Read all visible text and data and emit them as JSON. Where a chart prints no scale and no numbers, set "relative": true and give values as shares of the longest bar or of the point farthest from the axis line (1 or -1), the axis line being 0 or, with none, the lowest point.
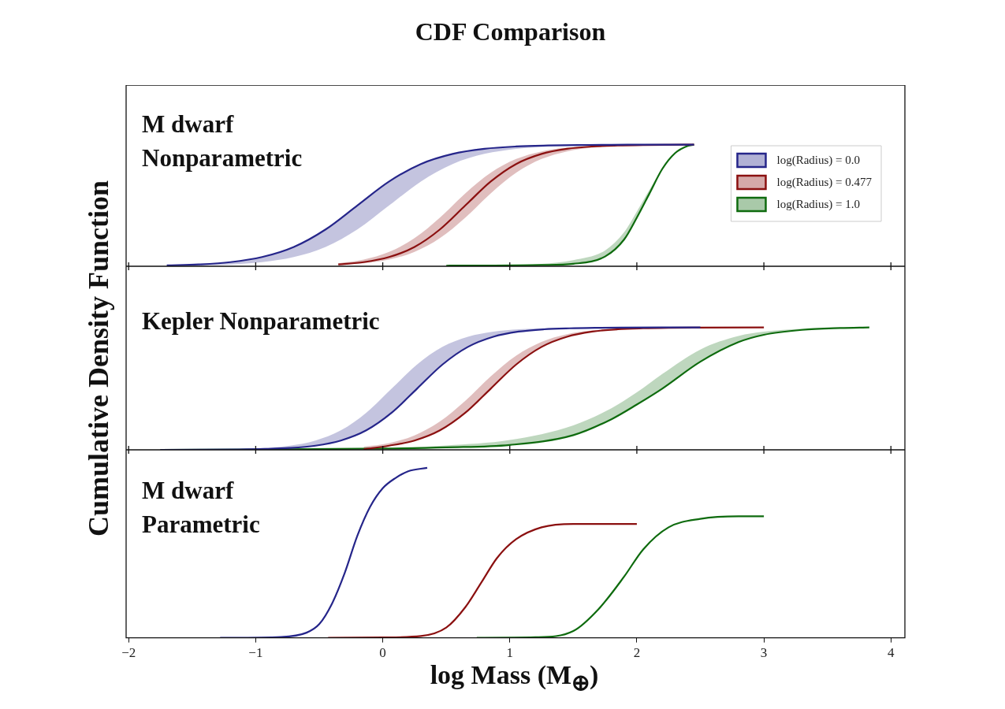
{
  "chart_data": [
    {
      "type": "line",
      "title": "CDF Comparison",
      "annotations": [
        "M dwarf\nNonparametric"
      ],
      "relative": true,
      "xlim": [
        -2.02,
        4.11
      ],
      "xticks": [
        -2,
        -1,
        0,
        1,
        2,
        3,
        4
      ],
      "tick_labels": false,
      "legend": "right",
      "series": [
        {
          "name": "log(Radius) = 0.0",
          "color": "#25258a",
          "x": [
            -1.7,
            -1.45,
            -1.2,
            -0.95,
            -0.7,
            -0.45,
            -0.2,
            0.05,
            0.3,
            0.55,
            0.8,
            1.05,
            1.3,
            1.55,
            1.8,
            2.1,
            2.45
          ],
          "values": [
            0.007,
            0.015,
            0.034,
            0.076,
            0.159,
            0.303,
            0.5,
            0.697,
            0.841,
            0.924,
            0.966,
            0.985,
            0.993,
            0.997,
            0.999,
            1,
            1
          ],
          "upper": [
            0.007,
            0.015,
            0.034,
            0.076,
            0.159,
            0.303,
            0.5,
            0.697,
            0.841,
            0.924,
            0.966,
            0.985,
            0.993,
            0.997,
            0.999,
            1,
            1
          ],
          "lower": [
            0.003,
            0.007,
            0.015,
            0.034,
            0.076,
            0.159,
            0.303,
            0.5,
            0.697,
            0.841,
            0.924,
            0.966,
            0.985,
            0.993,
            0.997,
            1,
            1
          ]
        },
        {
          "name": "log(Radius) = 0.477",
          "color": "#8b1010",
          "x": [
            -0.35,
            -0.15,
            0.05,
            0.25,
            0.45,
            0.65,
            0.85,
            1.05,
            1.25,
            1.45,
            1.65,
            1.85,
            2.05,
            2.25,
            2.45
          ],
          "values": [
            0.015,
            0.034,
            0.076,
            0.159,
            0.303,
            0.5,
            0.697,
            0.841,
            0.924,
            0.966,
            0.985,
            0.993,
            0.997,
            0.999,
            1
          ],
          "upper": [
            0.025,
            0.055,
            0.118,
            0.231,
            0.4,
            0.6,
            0.769,
            0.882,
            0.945,
            0.975,
            0.989,
            0.995,
            0.998,
            1,
            1
          ],
          "lower": [
            0.011,
            0.025,
            0.055,
            0.118,
            0.231,
            0.4,
            0.6,
            0.769,
            0.882,
            0.945,
            0.975,
            0.989,
            0.995,
            0.998,
            1
          ]
        },
        {
          "name": "log(Radius) = 1.0",
          "color": "#0e6b0e",
          "x": [
            0.5,
            0.75,
            1.25,
            1.5,
            1.75,
            1.9,
            2.0,
            2.1,
            2.2,
            2.3,
            2.4,
            2.45
          ],
          "values": [
            0.005,
            0.006,
            0.01,
            0.02,
            0.08,
            0.22,
            0.4,
            0.6,
            0.8,
            0.93,
            0.99,
            1
          ],
          "upper": [
            0.005,
            0.008,
            0.02,
            0.05,
            0.13,
            0.28,
            0.45,
            0.63,
            0.8,
            0.93,
            0.99,
            1
          ],
          "lower": [
            0.005,
            0.006,
            0.01,
            0.02,
            0.08,
            0.22,
            0.4,
            0.6,
            0.8,
            0.93,
            0.99,
            1
          ]
        }
      ]
    },
    {
      "type": "line",
      "ylabel": "Cumulative Density Function",
      "annotations": [
        "Kepler Nonparametric"
      ],
      "relative": true,
      "xlim": [
        -2.02,
        4.11
      ],
      "xticks": [
        -2,
        -1,
        0,
        1,
        2,
        3,
        4
      ],
      "tick_labels": false,
      "series": [
        {
          "color": "#25258a",
          "x": [
            -1.75,
            -1.13,
            -0.93,
            -0.73,
            -0.53,
            -0.33,
            -0.13,
            0.07,
            0.27,
            0.47,
            0.67,
            0.87,
            1.07,
            1.27,
            1.47,
            1.67,
            1.87,
            2.5
          ],
          "values": [
            0,
            0.003,
            0.007,
            0.015,
            0.034,
            0.076,
            0.159,
            0.303,
            0.5,
            0.697,
            0.841,
            0.924,
            0.966,
            0.985,
            0.993,
            0.997,
            0.999,
            1
          ],
          "upper": [
            0,
            0.007,
            0.015,
            0.034,
            0.076,
            0.159,
            0.303,
            0.5,
            0.697,
            0.841,
            0.924,
            0.966,
            0.985,
            0.993,
            0.997,
            0.999,
            1,
            1
          ],
          "lower": [
            0,
            0.003,
            0.007,
            0.015,
            0.034,
            0.076,
            0.159,
            0.303,
            0.5,
            0.697,
            0.841,
            0.924,
            0.966,
            0.985,
            0.993,
            0.997,
            0.999,
            1
          ]
        },
        {
          "color": "#8b1010",
          "x": [
            -0.15,
            0.05,
            0.25,
            0.45,
            0.65,
            0.85,
            1.05,
            1.25,
            1.45,
            1.65,
            1.85,
            2.05,
            2.25,
            2.45,
            3.0
          ],
          "values": [
            0.005,
            0.034,
            0.076,
            0.159,
            0.303,
            0.5,
            0.697,
            0.841,
            0.924,
            0.966,
            0.985,
            0.993,
            0.997,
            0.999,
            1
          ],
          "upper": [
            0.025,
            0.055,
            0.118,
            0.231,
            0.4,
            0.6,
            0.769,
            0.882,
            0.945,
            0.975,
            0.989,
            0.995,
            0.998,
            1,
            1
          ],
          "lower": [
            0.005,
            0.034,
            0.076,
            0.159,
            0.303,
            0.5,
            0.697,
            0.841,
            0.924,
            0.966,
            0.985,
            0.993,
            0.997,
            0.999,
            1
          ]
        },
        {
          "color": "#0e6b0e",
          "x": [
            -1.75,
            -1.0,
            0,
            0.5,
            1.0,
            1.5,
            1.8,
            2.0,
            2.2,
            2.5,
            2.8,
            3.0,
            3.3,
            3.6,
            3.83
          ],
          "values": [
            0,
            0.003,
            0.01,
            0.02,
            0.04,
            0.12,
            0.25,
            0.37,
            0.5,
            0.72,
            0.88,
            0.94,
            0.98,
            0.995,
            1
          ],
          "upper": [
            0,
            0.003,
            0.01,
            0.035,
            0.08,
            0.2,
            0.34,
            0.47,
            0.62,
            0.82,
            0.93,
            0.965,
            0.99,
            0.997,
            1
          ],
          "lower": [
            0,
            0.003,
            0.01,
            0.02,
            0.04,
            0.12,
            0.25,
            0.37,
            0.5,
            0.72,
            0.88,
            0.94,
            0.98,
            0.995,
            1
          ]
        }
      ]
    },
    {
      "type": "line",
      "xlabel": "log Mass (M$_{⊕}$)",
      "annotations": [
        "M dwarf\nParametric"
      ],
      "relative": true,
      "xlim": [
        -2.02,
        4.11
      ],
      "xticks": [
        {
          "value": -2,
          "label": "−2"
        },
        {
          "value": -1,
          "label": "−1"
        },
        0,
        1,
        2,
        3,
        4
      ],
      "tick_labels": "x",
      "series": [
        {
          "color": "#25258a",
          "x": [
            -1.28,
            -0.8,
            -0.6,
            -0.5,
            -0.4,
            -0.3,
            -0.2,
            -0.1,
            0,
            0.1,
            0.2,
            0.35
          ],
          "values": [
            0,
            0.005,
            0.03,
            0.08,
            0.2,
            0.38,
            0.6,
            0.77,
            0.88,
            0.94,
            0.98,
            1
          ]
        },
        {
          "color": "#8b1010",
          "x": [
            -0.43,
            0,
            0.3,
            0.5,
            0.65,
            0.78,
            0.9,
            1.05,
            1.25,
            1.5,
            2.0
          ],
          "values": [
            0,
            0.002,
            0.01,
            0.06,
            0.18,
            0.33,
            0.47,
            0.58,
            0.65,
            0.67,
            0.67
          ]
        },
        {
          "color": "#0e6b0e",
          "x": [
            0.74,
            1.2,
            1.5,
            1.7,
            1.9,
            2.05,
            2.25,
            2.5,
            2.8,
            3.0
          ],
          "values": [
            0,
            0.003,
            0.04,
            0.17,
            0.36,
            0.52,
            0.65,
            0.7,
            0.715,
            0.715
          ]
        }
      ]
    }
  ]
}
